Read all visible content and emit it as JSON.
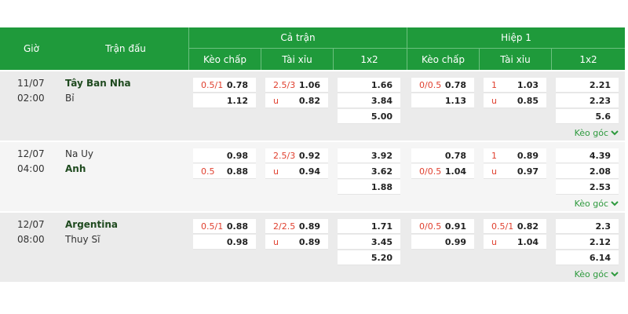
{
  "header": {
    "time": "Giờ",
    "match": "Trận đấu",
    "groups": [
      "Cả trận",
      "Hiệp 1"
    ],
    "columns": [
      "Kèo chấp",
      "Tài xỉu",
      "1x2",
      "Kèo chấp",
      "Tài xỉu",
      "1x2"
    ]
  },
  "matches": [
    {
      "date": "11/07",
      "time": "02:00",
      "home": "Tây Ban Nha",
      "away": "Bỉ",
      "favorite": "home",
      "corner": "Kèo góc",
      "rows": [
        [
          {
            "line": "0.5/1",
            "odds": "0.78"
          },
          {
            "line": "2.5/3",
            "odds": "1.06"
          },
          {
            "odds": "1.66"
          },
          {
            "line": "0/0.5",
            "odds": "0.78"
          },
          {
            "line": "1",
            "odds": "1.03"
          },
          {
            "odds": "2.21"
          }
        ],
        [
          {
            "odds": "1.12"
          },
          {
            "line": "u",
            "odds": "0.82"
          },
          {
            "odds": "3.84"
          },
          {
            "odds": "1.13"
          },
          {
            "line": "u",
            "odds": "0.85"
          },
          {
            "odds": "2.23"
          }
        ],
        [
          null,
          null,
          {
            "odds": "5.00"
          },
          null,
          null,
          {
            "odds": "5.6"
          }
        ]
      ]
    },
    {
      "date": "12/07",
      "time": "04:00",
      "home": "Na Uy",
      "away": "Anh",
      "favorite": "away",
      "corner": "Kèo góc",
      "rows": [
        [
          {
            "odds": "0.98"
          },
          {
            "line": "2.5/3",
            "odds": "0.92"
          },
          {
            "odds": "3.92"
          },
          {
            "odds": "0.78"
          },
          {
            "line": "1",
            "odds": "0.89"
          },
          {
            "odds": "4.39"
          }
        ],
        [
          {
            "line": "0.5",
            "odds": "0.88"
          },
          {
            "line": "u",
            "odds": "0.94"
          },
          {
            "odds": "3.62"
          },
          {
            "line": "0/0.5",
            "odds": "1.04"
          },
          {
            "line": "u",
            "odds": "0.97"
          },
          {
            "odds": "2.08"
          }
        ],
        [
          null,
          null,
          {
            "odds": "1.88"
          },
          null,
          null,
          {
            "odds": "2.53"
          }
        ]
      ]
    },
    {
      "date": "12/07",
      "time": "08:00",
      "home": "Argentina",
      "away": "Thuy Sĩ",
      "favorite": "home",
      "corner": "Kèo góc",
      "rows": [
        [
          {
            "line": "0.5/1",
            "odds": "0.88"
          },
          {
            "line": "2/2.5",
            "odds": "0.89"
          },
          {
            "odds": "1.71"
          },
          {
            "line": "0/0.5",
            "odds": "0.91"
          },
          {
            "line": "0.5/1",
            "odds": "0.82"
          },
          {
            "odds": "2.3"
          }
        ],
        [
          {
            "odds": "0.98"
          },
          {
            "line": "u",
            "odds": "0.89"
          },
          {
            "odds": "3.45"
          },
          {
            "odds": "0.99"
          },
          {
            "line": "u",
            "odds": "1.04"
          },
          {
            "odds": "2.12"
          }
        ],
        [
          null,
          null,
          {
            "odds": "5.20"
          },
          null,
          null,
          {
            "odds": "6.14"
          }
        ]
      ]
    }
  ]
}
